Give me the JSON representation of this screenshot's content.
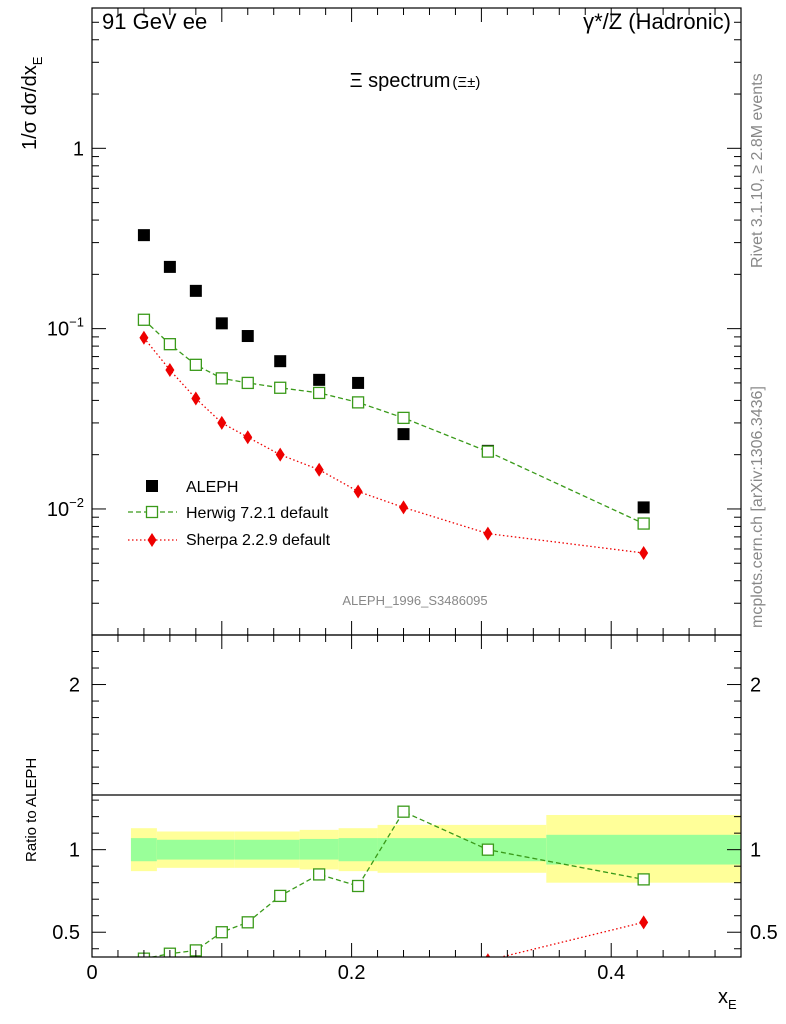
{
  "header": {
    "left": "91 GeV ee",
    "right": "γ*/Z (Hadronic)"
  },
  "side_labels": {
    "rivet": "Rivet 3.1.10, ≥ 2.8M events",
    "mcplots": "mcplots.cern.ch [arXiv:1306.3436]"
  },
  "colors": {
    "data": "#000000",
    "herwig": "#3a9a1a",
    "sherpa": "#ee0000",
    "band_inner": "#99ff99",
    "band_outer": "#ffff99"
  },
  "chart_data": [
    {
      "type": "scatter",
      "title": "Ξ spectrum",
      "title_suffix": "(Ξ±)",
      "ylabel": "1/σ dσ/dx",
      "ylabel_sub": "E",
      "yscale": "log",
      "xlim": [
        0,
        0.5
      ],
      "ylim": [
        0.002,
        6
      ],
      "ytick_labels": [
        {
          "value": 1,
          "base": "1",
          "exp": ""
        },
        {
          "value": 0.1,
          "base": "10",
          "exp": "−1"
        },
        {
          "value": 0.01,
          "base": "10",
          "exp": "−2"
        }
      ],
      "watermark": "ALEPH_1996_S3486095",
      "legend_position": "lower-left",
      "series": [
        {
          "name": "ALEPH",
          "marker": "filled-square",
          "x": [
            0.04,
            0.06,
            0.08,
            0.1,
            0.12,
            0.145,
            0.175,
            0.205,
            0.24,
            0.305,
            0.425
          ],
          "y": [
            0.33,
            0.22,
            0.162,
            0.107,
            0.091,
            0.066,
            0.052,
            0.05,
            0.026,
            0.021,
            0.0102
          ]
        },
        {
          "name": "Herwig 7.2.1 default",
          "marker": "open-square",
          "linestyle": "dashed",
          "x": [
            0.04,
            0.06,
            0.08,
            0.1,
            0.12,
            0.145,
            0.175,
            0.205,
            0.24,
            0.305,
            0.425
          ],
          "y": [
            0.112,
            0.082,
            0.063,
            0.053,
            0.05,
            0.047,
            0.044,
            0.039,
            0.032,
            0.0208,
            0.0083
          ]
        },
        {
          "name": "Sherpa 2.2.9 default",
          "marker": "filled-diamond",
          "linestyle": "dotted",
          "x": [
            0.04,
            0.06,
            0.08,
            0.1,
            0.12,
            0.145,
            0.175,
            0.205,
            0.24,
            0.305,
            0.425
          ],
          "y": [
            0.089,
            0.059,
            0.041,
            0.03,
            0.025,
            0.02,
            0.0165,
            0.0125,
            0.0102,
            0.0073,
            0.0057
          ]
        }
      ]
    },
    {
      "type": "line",
      "ylabel": "Ratio to ALEPH",
      "xlabel": "x",
      "xlabel_sub": "E",
      "xlim": [
        0,
        0.5
      ],
      "ylim": [
        0.35,
        2.3
      ],
      "yticks": [
        0.5,
        1,
        2
      ],
      "ytick_labels": [
        "0.5",
        "1",
        "2"
      ],
      "xticks": [
        0,
        0.2,
        0.4
      ],
      "xtick_labels": [
        "0",
        "0.2",
        "0.4"
      ],
      "bands": [
        {
          "x0": 0.03,
          "x1": 0.05,
          "inner": [
            0.93,
            1.07
          ],
          "outer": [
            0.87,
            1.13
          ]
        },
        {
          "x0": 0.05,
          "x1": 0.11,
          "inner": [
            0.94,
            1.06
          ],
          "outer": [
            0.89,
            1.11
          ]
        },
        {
          "x0": 0.11,
          "x1": 0.16,
          "inner": [
            0.94,
            1.06
          ],
          "outer": [
            0.89,
            1.11
          ]
        },
        {
          "x0": 0.16,
          "x1": 0.19,
          "inner": [
            0.94,
            1.065
          ],
          "outer": [
            0.88,
            1.12
          ]
        },
        {
          "x0": 0.19,
          "x1": 0.22,
          "inner": [
            0.93,
            1.07
          ],
          "outer": [
            0.87,
            1.13
          ]
        },
        {
          "x0": 0.22,
          "x1": 0.35,
          "inner": [
            0.93,
            1.07
          ],
          "outer": [
            0.86,
            1.15
          ]
        },
        {
          "x0": 0.35,
          "x1": 0.5,
          "inner": [
            0.91,
            1.09
          ],
          "outer": [
            0.8,
            1.21
          ]
        }
      ],
      "series": [
        {
          "name": "Herwig 7.2.1 default",
          "marker": "open-square",
          "linestyle": "dashed",
          "x": [
            0.04,
            0.06,
            0.08,
            0.1,
            0.12,
            0.145,
            0.175,
            0.205,
            0.24,
            0.305,
            0.425
          ],
          "y": [
            0.34,
            0.37,
            0.39,
            0.5,
            0.56,
            0.72,
            0.85,
            0.78,
            1.23,
            1.0,
            0.82
          ]
        },
        {
          "name": "Sherpa 2.2.9 default",
          "marker": "filled-diamond",
          "linestyle": "dotted",
          "x": [
            0.305,
            0.425
          ],
          "y": [
            0.33,
            0.56
          ]
        }
      ]
    }
  ]
}
